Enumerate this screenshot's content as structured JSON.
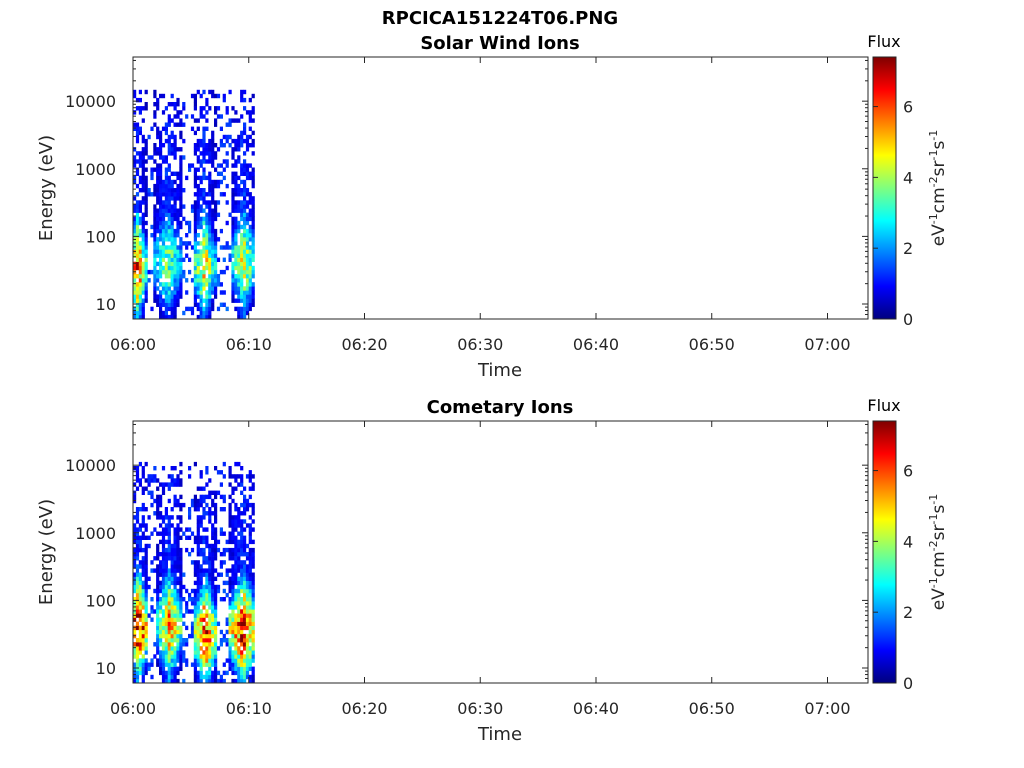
{
  "figure": {
    "title": "RPCICA151224T06.PNG"
  },
  "colormap": [
    "#00007f",
    "#0000ff",
    "#007fff",
    "#00ffff",
    "#7fff7f",
    "#ffff00",
    "#ff7f00",
    "#ff0000",
    "#7f0000"
  ],
  "chart_data": [
    {
      "type": "heatmap",
      "title": "Solar Wind Ions",
      "xlabel": "Time",
      "ylabel": "Energy (eV)",
      "x_ticks": [
        "06:00",
        "06:10",
        "06:20",
        "06:30",
        "06:40",
        "06:50",
        "07:00"
      ],
      "y_ticks": [
        "10",
        "100",
        "1000",
        "10000"
      ],
      "y_scale": "log",
      "ylim": [
        6,
        45000
      ],
      "xlim_minutes": [
        0,
        63.5
      ],
      "colorbar": {
        "title": "Flux",
        "label": "eV-1cm-2sr-1s-1",
        "ticks": [
          "0",
          "2",
          "4",
          "6"
        ],
        "range": [
          0,
          7.4
        ]
      },
      "bursts": [
        {
          "t_start": 0.0,
          "t_end": 0.8,
          "peak_energy": 32,
          "peak_flux": 6.0
        },
        {
          "t_start": 2.0,
          "t_end": 4.0,
          "peak_energy": 40,
          "peak_flux": 3.6
        },
        {
          "t_start": 5.5,
          "t_end": 6.8,
          "peak_energy": 35,
          "peak_flux": 4.8
        },
        {
          "t_start": 8.8,
          "t_end": 10.3,
          "peak_energy": 40,
          "peak_flux": 4.4
        }
      ],
      "data_extent": {
        "t_minutes": [
          0,
          10.3
        ],
        "energy_eV": [
          6,
          13000
        ]
      }
    },
    {
      "type": "heatmap",
      "title": "Cometary Ions",
      "xlabel": "Time",
      "ylabel": "Energy (eV)",
      "x_ticks": [
        "06:00",
        "06:10",
        "06:20",
        "06:30",
        "06:40",
        "06:50",
        "07:00"
      ],
      "y_ticks": [
        "10",
        "100",
        "1000",
        "10000"
      ],
      "y_scale": "log",
      "ylim": [
        6,
        45000
      ],
      "xlim_minutes": [
        0,
        63.5
      ],
      "colorbar": {
        "title": "Flux",
        "label": "eV-1cm-2sr-1s-1",
        "ticks": [
          "0",
          "2",
          "4",
          "6"
        ],
        "range": [
          0,
          7.4
        ]
      },
      "bursts": [
        {
          "t_start": 0.0,
          "t_end": 1.0,
          "peak_energy": 38,
          "peak_flux": 7.0
        },
        {
          "t_start": 2.3,
          "t_end": 4.0,
          "peak_energy": 40,
          "peak_flux": 5.2
        },
        {
          "t_start": 5.5,
          "t_end": 7.0,
          "peak_energy": 30,
          "peak_flux": 6.2
        },
        {
          "t_start": 8.5,
          "t_end": 10.5,
          "peak_energy": 35,
          "peak_flux": 6.4
        }
      ],
      "data_extent": {
        "t_minutes": [
          0,
          10.5
        ],
        "energy_eV": [
          6,
          10000
        ]
      }
    }
  ]
}
